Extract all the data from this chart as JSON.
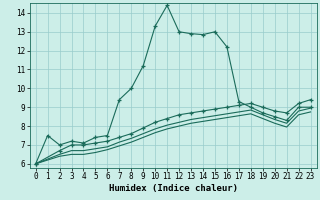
{
  "xlabel": "Humidex (Indice chaleur)",
  "bg_color": "#cceee8",
  "grid_color": "#99cccc",
  "line_color": "#1a6b5a",
  "xlim": [
    -0.5,
    23.5
  ],
  "ylim": [
    5.8,
    14.5
  ],
  "xticks": [
    0,
    1,
    2,
    3,
    4,
    5,
    6,
    7,
    8,
    9,
    10,
    11,
    12,
    13,
    14,
    15,
    16,
    17,
    18,
    19,
    20,
    21,
    22,
    23
  ],
  "yticks": [
    6,
    7,
    8,
    9,
    10,
    11,
    12,
    13,
    14
  ],
  "line1_x": [
    0,
    1,
    2,
    3,
    4,
    5,
    6,
    7,
    8,
    9,
    10,
    11,
    12,
    13,
    14,
    15,
    16,
    17,
    18,
    19,
    20,
    21,
    22,
    23
  ],
  "line1_y": [
    6.0,
    7.5,
    7.0,
    7.2,
    7.1,
    7.4,
    7.5,
    9.4,
    10.0,
    11.2,
    13.3,
    14.4,
    13.0,
    12.9,
    12.85,
    13.0,
    12.2,
    9.3,
    9.0,
    8.7,
    8.5,
    8.3,
    9.0,
    9.0
  ],
  "line2_x": [
    0,
    2,
    3,
    4,
    5,
    6,
    7,
    8,
    9,
    10,
    11,
    12,
    13,
    14,
    15,
    16,
    17,
    18,
    19,
    20,
    21,
    22,
    23
  ],
  "line2_y": [
    6.0,
    6.7,
    7.0,
    7.0,
    7.1,
    7.2,
    7.4,
    7.6,
    7.9,
    8.2,
    8.4,
    8.6,
    8.7,
    8.8,
    8.9,
    9.0,
    9.1,
    9.2,
    9.0,
    8.8,
    8.7,
    9.2,
    9.4
  ],
  "line3_x": [
    0,
    2,
    3,
    4,
    5,
    6,
    7,
    8,
    9,
    10,
    11,
    12,
    13,
    14,
    15,
    16,
    17,
    18,
    19,
    20,
    21,
    22,
    23
  ],
  "line3_y": [
    6.0,
    6.5,
    6.7,
    6.7,
    6.8,
    6.9,
    7.15,
    7.35,
    7.6,
    7.85,
    8.05,
    8.2,
    8.35,
    8.45,
    8.55,
    8.65,
    8.75,
    8.85,
    8.6,
    8.35,
    8.15,
    8.8,
    8.95
  ],
  "line4_x": [
    0,
    2,
    3,
    4,
    5,
    6,
    7,
    8,
    9,
    10,
    11,
    12,
    13,
    14,
    15,
    16,
    17,
    18,
    19,
    20,
    21,
    22,
    23
  ],
  "line4_y": [
    6.0,
    6.4,
    6.5,
    6.5,
    6.6,
    6.75,
    6.95,
    7.15,
    7.4,
    7.65,
    7.85,
    8.0,
    8.15,
    8.25,
    8.35,
    8.45,
    8.55,
    8.65,
    8.4,
    8.15,
    7.95,
    8.6,
    8.75
  ]
}
